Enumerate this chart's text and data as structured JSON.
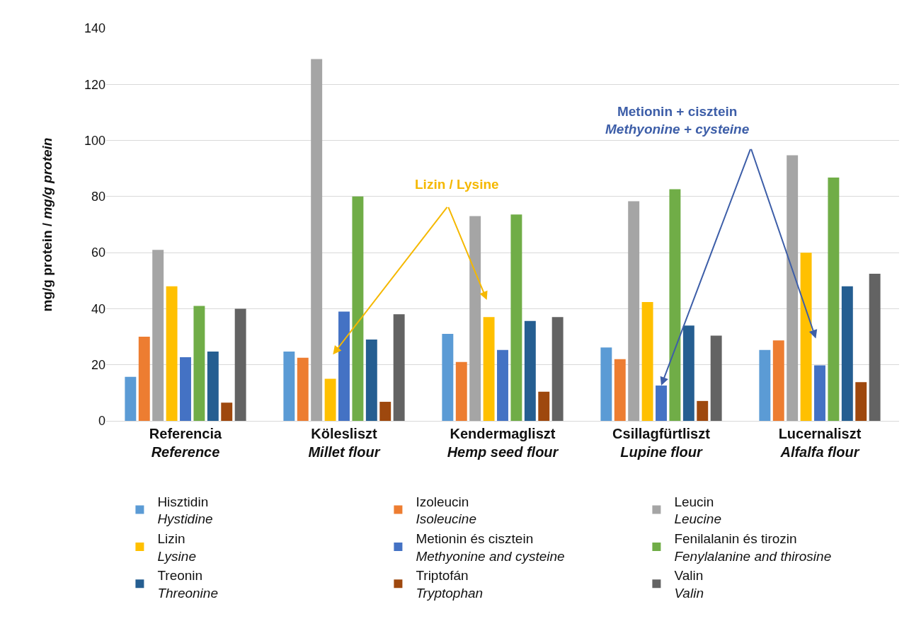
{
  "chart_data": {
    "type": "bar",
    "ylabel": "mg/g protein / mg/g protein",
    "categories": [
      "Referencia\nReference",
      "Kölesliszt\nMillet flour",
      "Kendermagliszt\nHemp seed flour",
      "Csillagfürtliszt\nLupine flour",
      "Lucernaliszt\nAlfalfa flour"
    ],
    "series": [
      {
        "name": "Hisztidin\nHystidine",
        "color": "#5b9bd5",
        "values": [
          15.7,
          24.7,
          31,
          26.2,
          25.3
        ]
      },
      {
        "name": "Izoleucin\nIsoleucine",
        "color": "#ed7d31",
        "values": [
          30,
          22.5,
          21,
          22,
          28.7
        ]
      },
      {
        "name": "Leucin\nLeucine",
        "color": "#a5a5a5",
        "values": [
          61,
          129,
          73,
          78.3,
          94.7
        ]
      },
      {
        "name": "Lizin\nLysine",
        "color": "#ffc000",
        "values": [
          48,
          15,
          37,
          42.4,
          60
        ]
      },
      {
        "name": "Metionin és cisztein\nMethyonine and cysteine",
        "color": "#4472c4",
        "values": [
          22.7,
          39,
          25.3,
          12.6,
          19.8
        ]
      },
      {
        "name": "Fenilalanin és tirozin\nFenylalanine and thirosine",
        "color": "#70ad47",
        "values": [
          41,
          80,
          73.6,
          82.6,
          86.8
        ]
      },
      {
        "name": "Treonin\nThreonine",
        "color": "#255e91",
        "values": [
          24.7,
          29,
          35.6,
          34,
          48
        ]
      },
      {
        "name": "Triptofán\nTryptophan",
        "color": "#9e480e",
        "values": [
          6.5,
          6.8,
          10.4,
          7.1,
          13.8
        ]
      },
      {
        "name": "Valin\nValin",
        "color": "#636363",
        "values": [
          40,
          38,
          37,
          30.4,
          52.5
        ]
      }
    ],
    "ylim": [
      0,
      140
    ],
    "yticks": [
      0,
      20,
      40,
      60,
      80,
      100,
      120,
      140
    ],
    "grid": "y",
    "legend": "bottom",
    "annotations": [
      "Lizin / Lysine",
      {
        "text": "Metionin + cisztein\nMethyonine + cysteine",
        "x": "Csillagfürtliszt\nLupine flour",
        "y": 12.6
      }
    ]
  }
}
